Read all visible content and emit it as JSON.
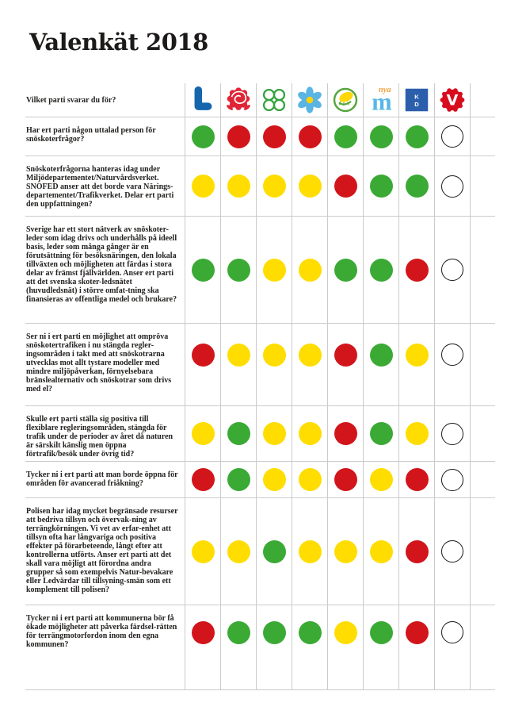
{
  "title": "Valenkät 2018",
  "survey": {
    "header_question": "Vilket parti svarar du för?",
    "parties": [
      {
        "id": "liberalerna",
        "logo_text": "L"
      },
      {
        "id": "socialdemokraterna"
      },
      {
        "id": "centerpartiet"
      },
      {
        "id": "sverigedemokraterna"
      },
      {
        "id": "miljopartiet"
      },
      {
        "id": "moderaterna",
        "logo_text": "m",
        "logo_text_secondary": "nya"
      },
      {
        "id": "kristdemokraterna",
        "logo_text_k": "K",
        "logo_text_d": "D"
      },
      {
        "id": "vansterpartiet",
        "logo_text": "V"
      }
    ],
    "answer_colors": {
      "green": "#3aaa35",
      "yellow": "#ffdd00",
      "red": "#d2151b",
      "none": "#ffffff"
    },
    "questions": [
      {
        "text": "Har ert parti någon uttalad person för snöskoterfrågor?",
        "answers": [
          "green",
          "red",
          "red",
          "red",
          "green",
          "green",
          "green",
          "none"
        ]
      },
      {
        "text": "Snöskoterfrågorna hanteras idag under Miljödepartementet/Naturvårdsverket. SNOFED anser att det borde vara Närings-departementet/Trafikverket. Delar ert parti den uppfattningen?",
        "answers": [
          "yellow",
          "yellow",
          "yellow",
          "yellow",
          "red",
          "green",
          "green",
          "none"
        ]
      },
      {
        "text": "Sverige har ett stort nätverk av snöskoter-leder som idag drivs och underhålls på ideell basis, leder som många gånger är en förutsättning för besöksnäringen, den lokala tillväxten och möjligheten att färdas i stora delar av främst fjällvärlden. Anser ert parti att det svenska skoter-ledsnätet (huvudledsnät) i större omfat-tning ska finansieras av offentliga medel och brukare?",
        "answers": [
          "green",
          "green",
          "yellow",
          "yellow",
          "green",
          "green",
          "red",
          "none"
        ]
      },
      {
        "text": "Ser ni i ert parti en möjlighet att ompröva snöskotertrafiken i nu stängda regler-ingsområden i takt med att snöskotrarna utvecklas mot allt tystare modeller med mindre miljöpåverkan, förnyelsebara bränslealternativ och snöskotrar som drivs med el?",
        "answers": [
          "red",
          "yellow",
          "yellow",
          "yellow",
          "red",
          "green",
          "yellow",
          "none"
        ]
      },
      {
        "text": "Skulle ert parti ställa sig positiva till flexiblare regleringsområden, stängda för trafik under de perioder av året då naturen är särskilt känslig men öppna förtrafik/besök under övrig tid?",
        "answers": [
          "yellow",
          "green",
          "yellow",
          "yellow",
          "red",
          "green",
          "yellow",
          "none"
        ]
      },
      {
        "text": "Tycker ni i ert parti att man borde öppna för områden för avancerad friåkning?",
        "answers": [
          "red",
          "green",
          "yellow",
          "yellow",
          "red",
          "yellow",
          "red",
          "none"
        ]
      },
      {
        "text": "Polisen har idag mycket begränsade resurser att bedriva tillsyn och övervak-ning av terrängkörningen. Vi vet av erfar-enhet att tillsyn ofta har långvariga och positiva effekter på förarbeteende, långt efter att kontrollerna utförts. Anser ert parti att det skall vara möjligt att förordna andra grupper så som exempelvis Natur-bevakare eller Ledvärdar till tillsyning-smän som ett komplement till polisen?",
        "answers": [
          "yellow",
          "yellow",
          "green",
          "yellow",
          "yellow",
          "yellow",
          "red",
          "none"
        ]
      },
      {
        "text": "Tycker ni i ert parti att kommunerna bör få ökade möjligheter att påverka färdsel-rätten för terrängmotorfordon inom den egna kommunen?",
        "answers": [
          "red",
          "green",
          "green",
          "green",
          "yellow",
          "green",
          "red",
          "none"
        ]
      }
    ]
  }
}
